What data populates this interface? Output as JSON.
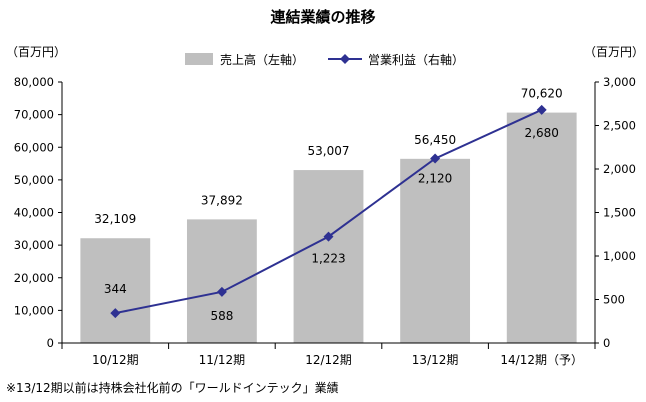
{
  "chart_data": {
    "type": "bar",
    "title": "連結業績の推移",
    "left_unit": "（百万円）",
    "right_unit": "（百万円）",
    "categories": [
      "10/12期",
      "11/12期",
      "12/12期",
      "13/12期",
      "14/12期（予）"
    ],
    "series": [
      {
        "name": "売上高（左軸）",
        "type": "bar",
        "axis": "left",
        "values": [
          32109,
          37892,
          53007,
          56450,
          70620
        ],
        "labels": [
          "32,109",
          "37,892",
          "53,007",
          "56,450",
          "70,620"
        ]
      },
      {
        "name": "営業利益（右軸）",
        "type": "line",
        "axis": "right",
        "values": [
          344,
          588,
          1223,
          2120,
          2680
        ],
        "labels": [
          "344",
          "588",
          "1,223",
          "2,120",
          "2,680"
        ]
      }
    ],
    "ylim_left": [
      0,
      80000
    ],
    "ylim_right": [
      0,
      3000
    ],
    "left_ticks": [
      "80,000",
      "70,000",
      "60,000",
      "50,000",
      "40,000",
      "30,000",
      "20,000",
      "10,000",
      "0"
    ],
    "right_ticks": [
      "3,000",
      "2,500",
      "2,000",
      "1,500",
      "1,000",
      "500",
      "0"
    ],
    "grid": false,
    "legend_position": "top",
    "colors": {
      "bar": "#bfbfbf",
      "line": "#2e3192",
      "axis": "#000000"
    },
    "note": "※13/12期以前は持株会社化前の「ワールドインテック」業績"
  }
}
